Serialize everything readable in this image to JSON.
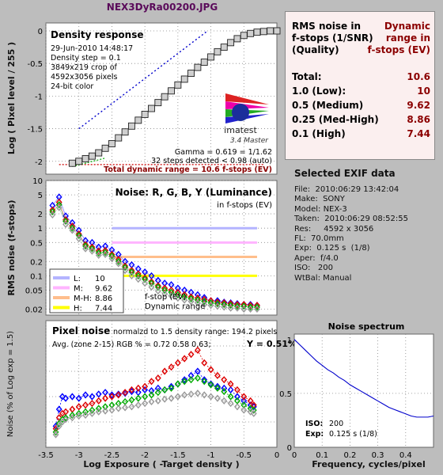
{
  "file_title": "NEX3DyRa00200.JPG",
  "density": {
    "title": "Density response",
    "info": [
      "29-Jun-2010 14:48:17",
      "Density step = 0.1",
      "3849x219 crop of",
      "4592x3056 pixels",
      "24-bit color"
    ],
    "gamma_text": "Gamma = 0.619 = 1/1.62",
    "steps_text": "32 steps detected < 0.98 (auto)",
    "dr_text": "Total dynamic range = 10.6 f-stops (EV)",
    "logo_text": "imatest",
    "version_text": "3.4  Master",
    "ylabel": "Log ( Pixel level / 255 )",
    "yticks": [
      "0",
      "-0.5",
      "-1",
      "-1.5",
      "-2"
    ]
  },
  "noise": {
    "title": "Noise: R, G, B, Y (Luminance)",
    "subtitle": "in f-stops (EV)",
    "ylabel": "RMS noise (f-stops)",
    "yticks": [
      "10",
      "5",
      "2",
      "1",
      "0.5",
      "0.2",
      "0.1",
      "0.05",
      "0.02"
    ],
    "fstop_label": "f-stop (EV)",
    "dynrange_label": "Dynamic range",
    "legend": [
      {
        "key": "L:",
        "value": "10",
        "color": "#b4b4ff"
      },
      {
        "key": "M:",
        "value": "9.62",
        "color": "#ffb4ff"
      },
      {
        "key": "M-H:",
        "value": "8.86",
        "color": "#ffbe8c"
      },
      {
        "key": "H:",
        "value": "7.44",
        "color": "#ffff00"
      }
    ]
  },
  "pixel": {
    "title": "Pixel noise",
    "norm_text": "normalzd to 1.5 density range: 194.2 pixels",
    "avg_text": "Avg. (zone 2-15) RGB % = 0.72  0.58  0.63;",
    "y_text": "Y = 0.51%",
    "ylabel": "Noise (% of Log exp = 1.5)",
    "xlabel": "Log Exposure ( -Target density )",
    "xticks": [
      "-3.5",
      "-3",
      "-2.5",
      "-2",
      "-1.5",
      "-1",
      "-0.5",
      "0"
    ]
  },
  "rms_table": {
    "header_left": [
      "RMS noise in",
      "f-stops (1/SNR)",
      "(Quality)"
    ],
    "header_right": [
      "Dynamic",
      "range in",
      "f-stops (EV)"
    ],
    "rows": [
      {
        "label": "Total:",
        "value": "10.6"
      },
      {
        "label": "1.0   (Low):",
        "value": "10"
      },
      {
        "label": "0.5   (Medium)",
        "value": "9.62"
      },
      {
        "label": "0.25 (Med-High)",
        "value": "8.86"
      },
      {
        "label": "0.1   (High)",
        "value": "7.44"
      }
    ]
  },
  "exif": {
    "title": "Selected EXIF data",
    "rows": [
      "File:  2010:06:29 13:42:04",
      "Make:  SONY",
      "Model: NEX-3",
      "Taken:  2010:06:29 08:52:55",
      "Res:     4592 x 3056",
      "FL:  70.0mm",
      "Exp:  0.125 s  (1/8)",
      "Aper:  f/4.0",
      "ISO:   200",
      "WtBal: Manual"
    ]
  },
  "spectrum": {
    "title": "Noise spectrum",
    "xlabel": "Frequency, cycles/pixel",
    "yticks": [
      "1",
      "0.5",
      "0"
    ],
    "xticks": [
      "0",
      "0.1",
      "0.2",
      "0.3",
      "0.4"
    ],
    "iso_label": "ISO:",
    "iso_value": "200",
    "exp_label": "Exp:",
    "exp_value": "0.125 s  (1/8)"
  },
  "chart_data": [
    {
      "type": "line",
      "name": "density-response",
      "x": [
        -3.1,
        -3.0,
        -2.9,
        -2.8,
        -2.7,
        -2.6,
        -2.5,
        -2.4,
        -2.3,
        -2.2,
        -2.1,
        -2.0,
        -1.9,
        -1.8,
        -1.7,
        -1.6,
        -1.5,
        -1.4,
        -1.3,
        -1.2,
        -1.1,
        -1.0,
        -0.9,
        -0.8,
        -0.7,
        -0.6,
        -0.5,
        -0.4,
        -0.3,
        -0.2,
        -0.1,
        0.0
      ],
      "values": [
        -2.03,
        -2.0,
        -1.96,
        -1.92,
        -1.87,
        -1.8,
        -1.73,
        -1.64,
        -1.55,
        -1.46,
        -1.37,
        -1.28,
        -1.19,
        -1.1,
        -1.01,
        -0.92,
        -0.83,
        -0.74,
        -0.65,
        -0.56,
        -0.48,
        -0.4,
        -0.32,
        -0.25,
        -0.18,
        -0.12,
        -0.07,
        -0.04,
        -0.02,
        -0.01,
        0.0,
        0.0
      ],
      "xlim": [
        -3.5,
        0
      ],
      "ylim": [
        -2.1,
        0
      ]
    },
    {
      "type": "scatter",
      "name": "rms-noise-fstops",
      "x": [
        -3.4,
        -3.3,
        -3.2,
        -3.1,
        -3.0,
        -2.9,
        -2.8,
        -2.7,
        -2.6,
        -2.5,
        -2.4,
        -2.3,
        -2.2,
        -2.1,
        -2.0,
        -1.9,
        -1.8,
        -1.7,
        -1.6,
        -1.5,
        -1.4,
        -1.3,
        -1.2,
        -1.1,
        -1.0,
        -0.9,
        -0.8,
        -0.7,
        -0.6,
        -0.5,
        -0.4,
        -0.3
      ],
      "series": [
        {
          "color": "#0000ff",
          "values": [
            3.0,
            4.5,
            1.8,
            1.3,
            0.9,
            0.55,
            0.5,
            0.4,
            0.42,
            0.35,
            0.28,
            0.2,
            0.17,
            0.14,
            0.12,
            0.1,
            0.08,
            0.07,
            0.065,
            0.055,
            0.05,
            0.045,
            0.04,
            0.035,
            0.03,
            0.03,
            0.028,
            0.027,
            0.026,
            0.025,
            0.025,
            0.024
          ]
        },
        {
          "color": "#dd0000",
          "values": [
            2.4,
            3.5,
            1.5,
            1.1,
            0.75,
            0.45,
            0.4,
            0.33,
            0.34,
            0.28,
            0.22,
            0.16,
            0.13,
            0.11,
            0.09,
            0.075,
            0.062,
            0.055,
            0.05,
            0.045,
            0.04,
            0.036,
            0.034,
            0.032,
            0.03,
            0.028,
            0.027,
            0.026,
            0.025,
            0.025,
            0.024,
            0.024
          ]
        },
        {
          "color": "#00aa00",
          "values": [
            2.2,
            3.1,
            1.4,
            1.0,
            0.7,
            0.42,
            0.37,
            0.3,
            0.31,
            0.26,
            0.2,
            0.15,
            0.12,
            0.1,
            0.085,
            0.07,
            0.058,
            0.05,
            0.045,
            0.04,
            0.036,
            0.033,
            0.031,
            0.029,
            0.027,
            0.026,
            0.025,
            0.024,
            0.023,
            0.023,
            0.022,
            0.022
          ]
        },
        {
          "color": "#999999",
          "values": [
            1.9,
            2.7,
            1.2,
            0.9,
            0.6,
            0.37,
            0.33,
            0.27,
            0.28,
            0.23,
            0.18,
            0.13,
            0.1,
            0.085,
            0.07,
            0.058,
            0.048,
            0.042,
            0.038,
            0.034,
            0.031,
            0.029,
            0.027,
            0.025,
            0.024,
            0.023,
            0.022,
            0.021,
            0.021,
            0.02,
            0.02,
            0.02
          ]
        }
      ],
      "ylim": [
        0.015,
        10
      ],
      "ylog": true
    },
    {
      "type": "scatter",
      "name": "pixel-noise",
      "x": [
        -3.35,
        -3.3,
        -3.25,
        -3.2,
        -3.1,
        -3.0,
        -2.9,
        -2.8,
        -2.7,
        -2.6,
        -2.5,
        -2.4,
        -2.3,
        -2.2,
        -2.1,
        -2.0,
        -1.9,
        -1.8,
        -1.7,
        -1.6,
        -1.5,
        -1.4,
        -1.3,
        -1.2,
        -1.1,
        -1.0,
        -0.9,
        -0.8,
        -0.7,
        -0.6,
        -0.5,
        -0.4,
        -0.35
      ],
      "series": [
        {
          "color": "#0000ff",
          "values": [
            0.25,
            0.45,
            0.6,
            0.58,
            0.6,
            0.58,
            0.62,
            0.6,
            0.63,
            0.65,
            0.62,
            0.63,
            0.64,
            0.66,
            0.65,
            0.68,
            0.67,
            0.7,
            0.68,
            0.72,
            0.75,
            0.8,
            0.85,
            0.9,
            0.8,
            0.75,
            0.72,
            0.7,
            0.68,
            0.6,
            0.55,
            0.5,
            0.48
          ]
        },
        {
          "color": "#dd0000",
          "values": [
            0.22,
            0.35,
            0.4,
            0.42,
            0.45,
            0.48,
            0.5,
            0.52,
            0.55,
            0.58,
            0.6,
            0.62,
            0.65,
            0.68,
            0.7,
            0.72,
            0.78,
            0.82,
            0.9,
            0.95,
            1.0,
            1.05,
            1.1,
            1.15,
            1.0,
            0.92,
            0.85,
            0.8,
            0.75,
            0.68,
            0.6,
            0.55,
            0.5
          ]
        },
        {
          "color": "#00aa00",
          "values": [
            0.18,
            0.28,
            0.33,
            0.35,
            0.38,
            0.4,
            0.42,
            0.44,
            0.46,
            0.48,
            0.5,
            0.52,
            0.54,
            0.56,
            0.58,
            0.6,
            0.62,
            0.65,
            0.68,
            0.7,
            0.75,
            0.78,
            0.8,
            0.82,
            0.78,
            0.74,
            0.7,
            0.66,
            0.6,
            0.55,
            0.5,
            0.46,
            0.44
          ]
        },
        {
          "color": "#999999",
          "values": [
            0.15,
            0.25,
            0.3,
            0.33,
            0.35,
            0.37,
            0.38,
            0.4,
            0.42,
            0.43,
            0.44,
            0.46,
            0.47,
            0.48,
            0.5,
            0.52,
            0.54,
            0.55,
            0.57,
            0.58,
            0.6,
            0.62,
            0.63,
            0.64,
            0.62,
            0.6,
            0.58,
            0.55,
            0.52,
            0.48,
            0.44,
            0.42,
            0.4
          ]
        }
      ],
      "xlim": [
        -3.5,
        0
      ],
      "ylim": [
        0,
        1.5
      ]
    },
    {
      "type": "line",
      "name": "noise-spectrum",
      "x": [
        0.0,
        0.02,
        0.04,
        0.06,
        0.08,
        0.1,
        0.12,
        0.14,
        0.16,
        0.18,
        0.2,
        0.22,
        0.24,
        0.26,
        0.28,
        0.3,
        0.32,
        0.34,
        0.36,
        0.38,
        0.4,
        0.42,
        0.44,
        0.46,
        0.48,
        0.5
      ],
      "values": [
        1.0,
        0.95,
        0.9,
        0.85,
        0.8,
        0.76,
        0.72,
        0.69,
        0.65,
        0.62,
        0.58,
        0.55,
        0.52,
        0.49,
        0.46,
        0.43,
        0.4,
        0.37,
        0.35,
        0.33,
        0.31,
        0.29,
        0.28,
        0.28,
        0.28,
        0.29
      ],
      "xlim": [
        0,
        0.5
      ],
      "ylim": [
        0,
        1.05
      ]
    }
  ]
}
